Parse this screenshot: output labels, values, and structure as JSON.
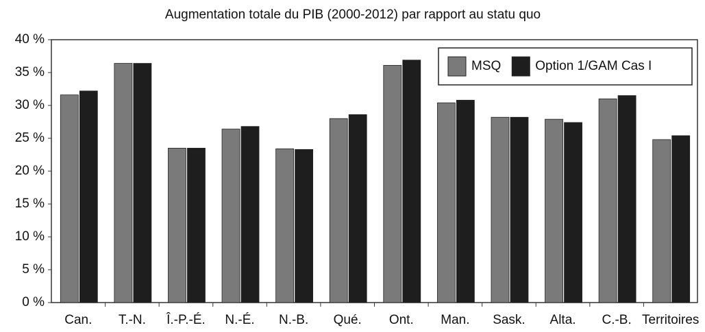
{
  "chart_data": {
    "type": "bar",
    "title": "Augmentation totale du PIB (2000-2012) par rapport au statu quo",
    "categories": [
      "Can.",
      "T.-N.",
      "Î.-P.-É.",
      "N.-É.",
      "N.-B.",
      "Qué.",
      "Ont.",
      "Man.",
      "Sask.",
      "Alta.",
      "C.-B.",
      "Territoires"
    ],
    "series": [
      {
        "name": "MSQ",
        "color": "#7a7a7a",
        "values": [
          31.6,
          36.4,
          23.5,
          26.4,
          23.4,
          28.0,
          36.1,
          30.4,
          28.2,
          27.9,
          31.0,
          24.8
        ]
      },
      {
        "name": "Option 1/GAM Cas I",
        "color": "#1e1e1e",
        "values": [
          32.2,
          36.4,
          23.5,
          26.8,
          23.3,
          28.6,
          36.9,
          30.8,
          28.2,
          27.4,
          31.5,
          25.4
        ]
      }
    ],
    "ylim": [
      0,
      40
    ],
    "yticks": [
      {
        "value": 0,
        "label": "0 %"
      },
      {
        "value": 5,
        "label": "5 %"
      },
      {
        "value": 10,
        "label": "10 %"
      },
      {
        "value": 15,
        "label": "15 %"
      },
      {
        "value": 20,
        "label": "20 %"
      },
      {
        "value": 25,
        "label": "25 %"
      },
      {
        "value": 30,
        "label": "30 %"
      },
      {
        "value": 35,
        "label": "35 %"
      },
      {
        "value": 40,
        "label": "40 %"
      }
    ],
    "grid": false,
    "legend": "top-right"
  }
}
